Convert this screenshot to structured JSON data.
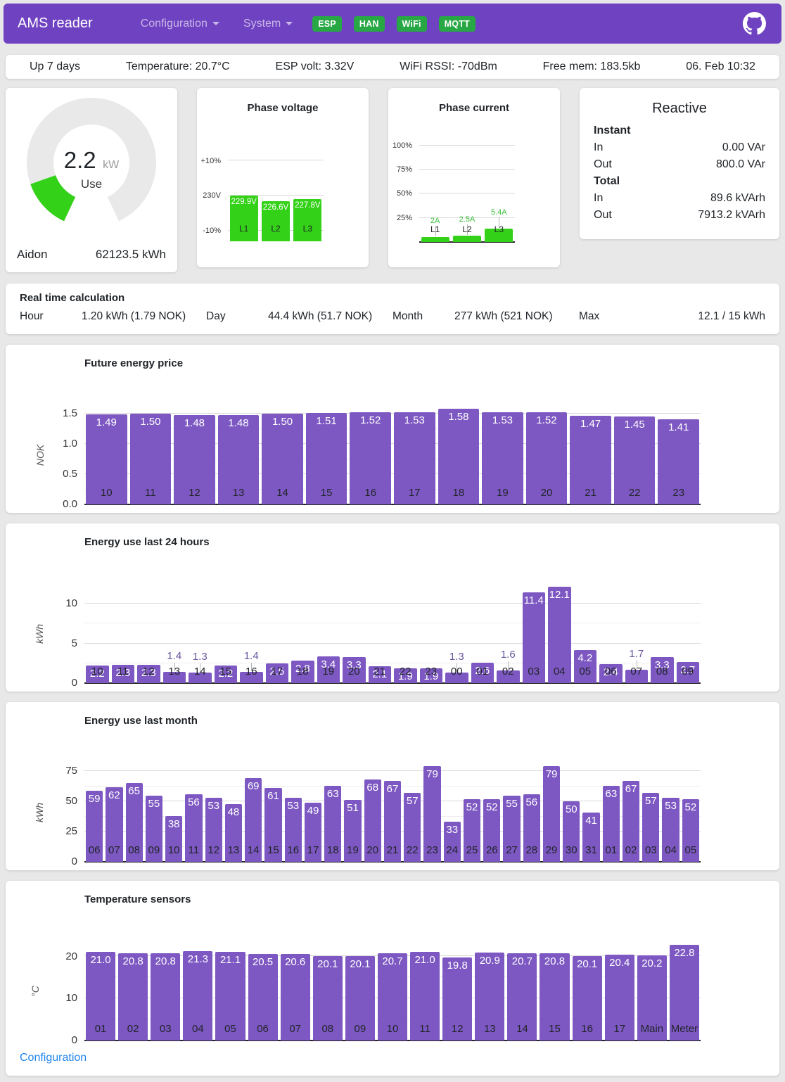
{
  "colors": {
    "header_bg": "#6f42c1",
    "badge_green": "#28a745",
    "bar_purple": "#7d58c2",
    "bar_green": "#33d117",
    "label_above_purple": "#6a559e",
    "label_above_green": "#3bbf3b",
    "link_blue": "#2186eb"
  },
  "header": {
    "title": "AMS reader",
    "nav": [
      {
        "label": "Configuration"
      },
      {
        "label": "System"
      }
    ],
    "badges": [
      {
        "label": "ESP"
      },
      {
        "label": "HAN"
      },
      {
        "label": "WiFi"
      },
      {
        "label": "MQTT"
      }
    ]
  },
  "statusbar": {
    "items": [
      "Up 7 days",
      "Temperature: 20.7°C",
      "ESP volt: 3.32V",
      "WiFi RSSI: -70dBm",
      "Free mem: 183.5kb",
      "06. Feb 10:32"
    ]
  },
  "gauge": {
    "value": "2.2",
    "unit": "kW",
    "label": "Use",
    "current_kw": 2.2,
    "max_kw": 15,
    "meter": "Aidon",
    "total": "62123.5 kWh"
  },
  "reactive": {
    "title": "Reactive",
    "sections": [
      {
        "label": "Instant",
        "rows": [
          [
            "In",
            "0.00 VAr"
          ],
          [
            "Out",
            "800.0 VAr"
          ]
        ]
      },
      {
        "label": "Total",
        "rows": [
          [
            "In",
            "89.6 kVArh"
          ],
          [
            "Out",
            "7913.2 kVArh"
          ]
        ]
      }
    ]
  },
  "realtime": {
    "title": "Real time calculation",
    "items": [
      [
        "Hour",
        "1.20 kWh (1.79 NOK)"
      ],
      [
        "Day",
        "44.4 kWh (51.7 NOK)"
      ],
      [
        "Month",
        "277 kWh (521 NOK)"
      ],
      [
        "Max",
        "12.1 / 15 kWh"
      ]
    ]
  },
  "footer": {
    "configuration_label": "Configuration"
  },
  "chart_data": [
    {
      "id": "phase-voltage",
      "type": "bar",
      "title": "Phase voltage",
      "categories": [
        "L1",
        "L2",
        "L3"
      ],
      "values": [
        229.9,
        226.6,
        227.8
      ],
      "bar_labels": [
        "229.9V",
        "226.6V",
        "227.8V"
      ],
      "ylim": [
        200,
        256
      ],
      "yticks": [
        [
          253,
          "+10%"
        ],
        [
          230,
          "230V"
        ],
        [
          207,
          "-10%"
        ]
      ],
      "bar_color": "#33d117",
      "grid": true,
      "legend": "none"
    },
    {
      "id": "phase-current",
      "type": "bar",
      "title": "Phase current",
      "categories": [
        "L1",
        "L2",
        "L3"
      ],
      "values": [
        2,
        2.5,
        5.4
      ],
      "bar_labels": [
        "2A",
        "2.5A",
        "5.4A"
      ],
      "ylim": [
        0,
        40.8
      ],
      "yticks": [
        [
          40,
          "100%"
        ],
        [
          30,
          "75%"
        ],
        [
          20,
          "50%"
        ],
        [
          10,
          "25%"
        ]
      ],
      "bar_color": "#33d117",
      "grid": true,
      "legend": "none"
    },
    {
      "id": "future-energy-price",
      "type": "bar",
      "title": "Future energy price",
      "ylabel": "NOK",
      "categories": [
        "10",
        "11",
        "12",
        "13",
        "14",
        "15",
        "16",
        "17",
        "18",
        "19",
        "20",
        "21",
        "22",
        "23"
      ],
      "values": [
        1.49,
        1.5,
        1.48,
        1.48,
        1.5,
        1.51,
        1.52,
        1.53,
        1.58,
        1.53,
        1.52,
        1.47,
        1.45,
        1.41
      ],
      "bar_labels": [
        "1.49",
        "1.50",
        "1.48",
        "1.48",
        "1.50",
        "1.51",
        "1.52",
        "1.53",
        "1.58",
        "1.53",
        "1.52",
        "1.47",
        "1.45",
        "1.41"
      ],
      "ylim": [
        0,
        1.63
      ],
      "yticks": [
        [
          0,
          "0.0"
        ],
        [
          0.5,
          "0.5"
        ],
        [
          1,
          "1.0"
        ],
        [
          1.5,
          "1.5"
        ]
      ],
      "yminor": [
        0.25,
        0.75,
        1.25
      ],
      "bar_color": "#7d58c2",
      "grid": true,
      "legend": "none"
    },
    {
      "id": "energy-last-24h",
      "type": "bar",
      "title": "Energy use last 24 hours",
      "ylabel": "kWh",
      "categories": [
        "10",
        "11",
        "12",
        "13",
        "14",
        "15",
        "16",
        "17",
        "18",
        "19",
        "20",
        "21",
        "22",
        "23",
        "00",
        "01",
        "02",
        "03",
        "04",
        "05",
        "06",
        "07",
        "08",
        "09"
      ],
      "values": [
        2.2,
        2.3,
        2.3,
        1.4,
        1.3,
        2.2,
        1.4,
        2.5,
        2.8,
        3.4,
        3.3,
        2.1,
        1.9,
        1.9,
        1.3,
        2.6,
        1.6,
        11.4,
        12.1,
        4.2,
        2.4,
        1.7,
        3.3,
        2.7
      ],
      "bar_labels": [
        "2.2",
        "2.3",
        "2.3",
        "1.4",
        "1.3",
        "2.2",
        "1.4",
        "2.5",
        "2.8",
        "3.4",
        "3.3",
        "2.1",
        "1.9",
        "1.9",
        "1.3",
        "2.6",
        "1.6",
        "11.4",
        "12.1",
        "4.2",
        "2.4",
        "1.7",
        "3.3",
        "2.7"
      ],
      "ylim": [
        0,
        12.4
      ],
      "yticks": [
        [
          0,
          "0"
        ],
        [
          5,
          "5"
        ],
        [
          10,
          "10"
        ]
      ],
      "yminor": [
        2.5,
        7.5
      ],
      "bar_color": "#7d58c2",
      "grid": true,
      "legend": "none"
    },
    {
      "id": "energy-last-month",
      "type": "bar",
      "title": "Energy use last month",
      "ylabel": "kWh",
      "categories": [
        "06",
        "07",
        "08",
        "09",
        "10",
        "11",
        "12",
        "13",
        "14",
        "15",
        "16",
        "17",
        "18",
        "19",
        "20",
        "21",
        "22",
        "23",
        "24",
        "25",
        "26",
        "27",
        "28",
        "29",
        "30",
        "31",
        "01",
        "02",
        "03",
        "04",
        "05"
      ],
      "values": [
        59,
        62,
        65,
        55,
        38,
        56,
        53,
        48,
        69,
        61,
        53,
        49,
        63,
        51,
        68,
        67,
        57,
        79,
        33,
        52,
        52,
        55,
        56,
        79,
        50,
        41,
        63,
        67,
        57,
        53,
        52
      ],
      "bar_labels": [
        "59",
        "62",
        "65",
        "55",
        "38",
        "56",
        "53",
        "48",
        "69",
        "61",
        "53",
        "49",
        "63",
        "51",
        "68",
        "67",
        "57",
        "79",
        "33",
        "52",
        "52",
        "55",
        "56",
        "79",
        "50",
        "41",
        "63",
        "67",
        "57",
        "53",
        "52"
      ],
      "ylim": [
        0,
        81.5
      ],
      "yticks": [
        [
          0,
          "0"
        ],
        [
          25,
          "25"
        ],
        [
          50,
          "50"
        ],
        [
          75,
          "75"
        ]
      ],
      "yminor": [
        12.5,
        37.5,
        62.5
      ],
      "bar_color": "#7d58c2",
      "grid": true,
      "legend": "none"
    },
    {
      "id": "temperature-sensors",
      "type": "bar",
      "title": "Temperature sensors",
      "ylabel": "°C",
      "categories": [
        "01",
        "02",
        "03",
        "04",
        "05",
        "06",
        "07",
        "08",
        "09",
        "10",
        "11",
        "12",
        "13",
        "14",
        "15",
        "16",
        "17",
        "Main",
        "Meter"
      ],
      "values": [
        21.0,
        20.8,
        20.8,
        21.3,
        21.1,
        20.5,
        20.6,
        20.1,
        20.1,
        20.7,
        21.0,
        19.8,
        20.9,
        20.7,
        20.8,
        20.1,
        20.4,
        20.2,
        22.8
      ],
      "bar_labels": [
        "21.0",
        "20.8",
        "20.8",
        "21.3",
        "21.1",
        "20.5",
        "20.6",
        "20.1",
        "20.1",
        "20.7",
        "21.0",
        "19.8",
        "20.9",
        "20.7",
        "20.8",
        "20.1",
        "20.4",
        "20.2",
        "22.8"
      ],
      "ylim": [
        0,
        23.4
      ],
      "yticks": [
        [
          0,
          "0"
        ],
        [
          10,
          "10"
        ],
        [
          20,
          "20"
        ]
      ],
      "yminor": [
        5,
        15
      ],
      "bar_color": "#7d58c2",
      "grid": true,
      "legend": "none"
    }
  ]
}
